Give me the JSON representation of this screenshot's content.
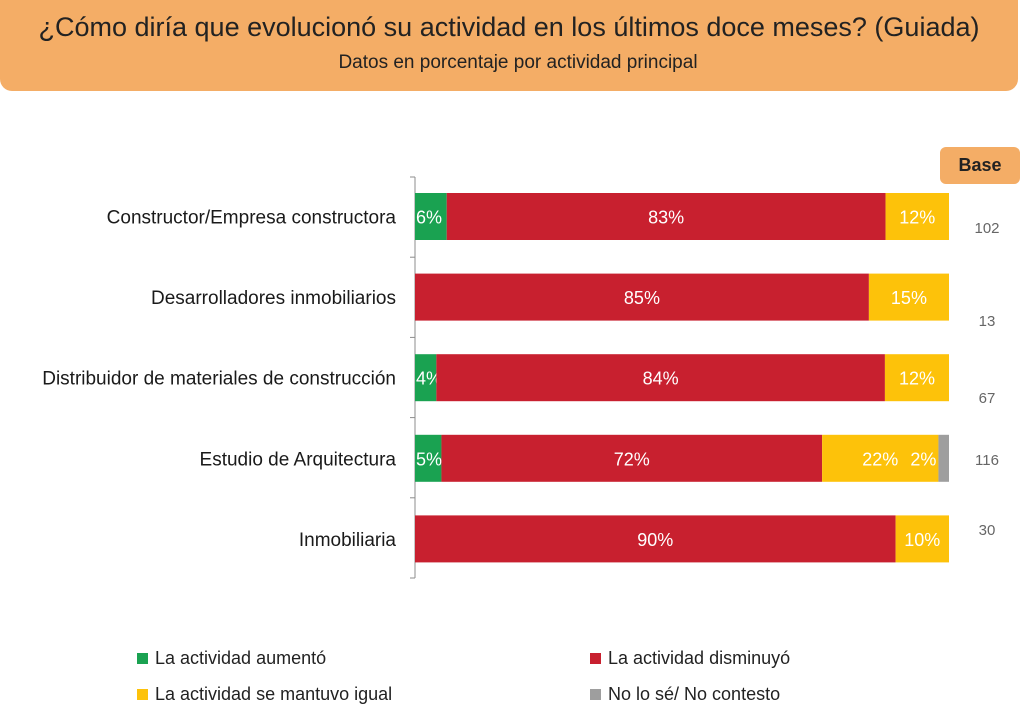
{
  "header": {
    "title": "¿Cómo diría que evolucionó su actividad en los últimos doce meses? (Guiada)",
    "subtitle": "Datos en porcentaje por actividad principal"
  },
  "base_label": "Base",
  "colors": {
    "header_bg": "#f4ad66",
    "aumento": "#1aa251",
    "disminuyo": "#c8202f",
    "igual": "#fdc20a",
    "nosabe": "#9e9e9e"
  },
  "chart_data": {
    "type": "bar",
    "orientation": "horizontal",
    "stacked": true,
    "categories": [
      "Constructor/Empresa constructora",
      "Desarrolladores inmobiliarios",
      "Distribuidor de materiales de construcción",
      "Estudio de Arquitectura",
      "Inmobiliaria"
    ],
    "series": [
      {
        "name": "La actividad aumentó",
        "color": "#1aa251",
        "values": [
          6,
          0,
          4,
          5,
          0
        ]
      },
      {
        "name": "La actividad disminuyó",
        "color": "#c8202f",
        "values": [
          83,
          85,
          84,
          72,
          90
        ]
      },
      {
        "name": "La actividad se mantuvo igual",
        "color": "#fdc20a",
        "values": [
          12,
          15,
          12,
          22,
          10
        ]
      },
      {
        "name": "No lo sé/ No contesto",
        "color": "#9e9e9e",
        "values": [
          0,
          0,
          0,
          2,
          0
        ]
      }
    ],
    "value_labels": [
      [
        "6%",
        "83%",
        "12%",
        ""
      ],
      [
        "",
        "85%",
        "15%",
        ""
      ],
      [
        "4%",
        "84%",
        "12%",
        ""
      ],
      [
        "5%",
        "72%",
        "22%",
        "2%"
      ],
      [
        "",
        "90%",
        "10%",
        ""
      ]
    ],
    "base": [
      "102",
      "13",
      "67",
      "116",
      "30"
    ],
    "xlim": [
      0,
      100
    ],
    "legend_position": "bottom"
  }
}
